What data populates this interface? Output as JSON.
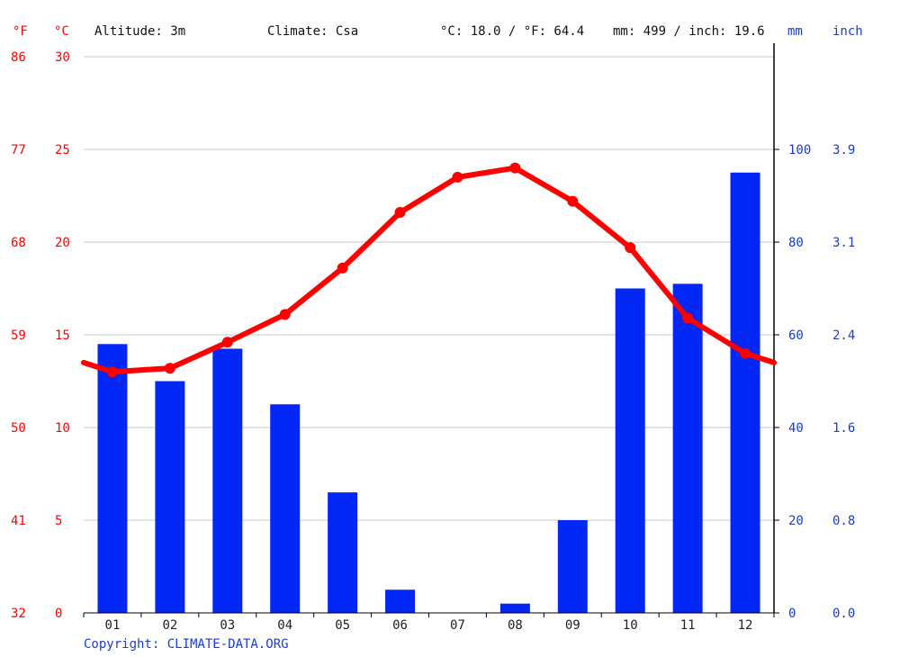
{
  "header": {
    "f_unit": "°F",
    "c_unit": "°C",
    "altitude": "Altitude: 3m",
    "climate": "Climate: Csa",
    "temp_avg": "°C: 18.0 / °F: 64.4",
    "precip_total": "mm: 499 / inch: 19.6",
    "mm_unit": "mm",
    "inch_unit": "inch"
  },
  "copyright": "Copyright: CLIMATE-DATA.ORG",
  "colors": {
    "temperature": "#ff0000",
    "precipitation": "#0327f5",
    "grid": "#c8c8c8"
  },
  "chart_data": {
    "type": "bar",
    "categories": [
      "01",
      "02",
      "03",
      "04",
      "05",
      "06",
      "07",
      "08",
      "09",
      "10",
      "11",
      "12"
    ],
    "precipitation_mm": [
      58,
      50,
      57,
      45,
      26,
      5,
      0,
      2,
      20,
      70,
      71,
      95
    ],
    "temperature_c": [
      13.0,
      13.2,
      14.6,
      16.1,
      18.6,
      21.6,
      23.5,
      24.0,
      22.2,
      19.7,
      15.9,
      14.0
    ],
    "temp_axis_c": {
      "ticks": [
        0,
        5,
        10,
        15,
        20,
        25,
        30
      ],
      "labels": [
        "0",
        "5",
        "10",
        "15",
        "20",
        "25",
        "30"
      ],
      "ylim": [
        0,
        30
      ]
    },
    "temp_axis_f": {
      "labels": [
        "32",
        "41",
        "50",
        "59",
        "68",
        "77",
        "86"
      ]
    },
    "precip_axis_mm": {
      "ticks": [
        0,
        20,
        40,
        60,
        80,
        100
      ],
      "labels": [
        "0",
        "20",
        "40",
        "60",
        "80",
        "100"
      ],
      "ylim": [
        0,
        120
      ]
    },
    "precip_axis_inch": {
      "labels": [
        "0.0",
        "0.8",
        "1.6",
        "2.4",
        "3.1",
        "3.9"
      ]
    },
    "grid": true
  }
}
